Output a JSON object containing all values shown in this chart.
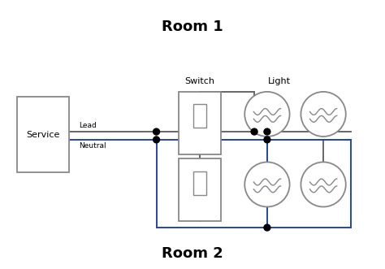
{
  "title_room1": "Room 1",
  "title_room2": "Room 2",
  "label_service": "Service",
  "label_switch": "Switch",
  "label_light": "Light",
  "label_lead": "Lead",
  "label_neutral": "Neutral",
  "bg_color": "#ffffff",
  "wire_gray": "#666666",
  "wire_blue": "#2244bb",
  "dot_color": "#000000",
  "box_edge": "#888888",
  "font_color": "#000000"
}
